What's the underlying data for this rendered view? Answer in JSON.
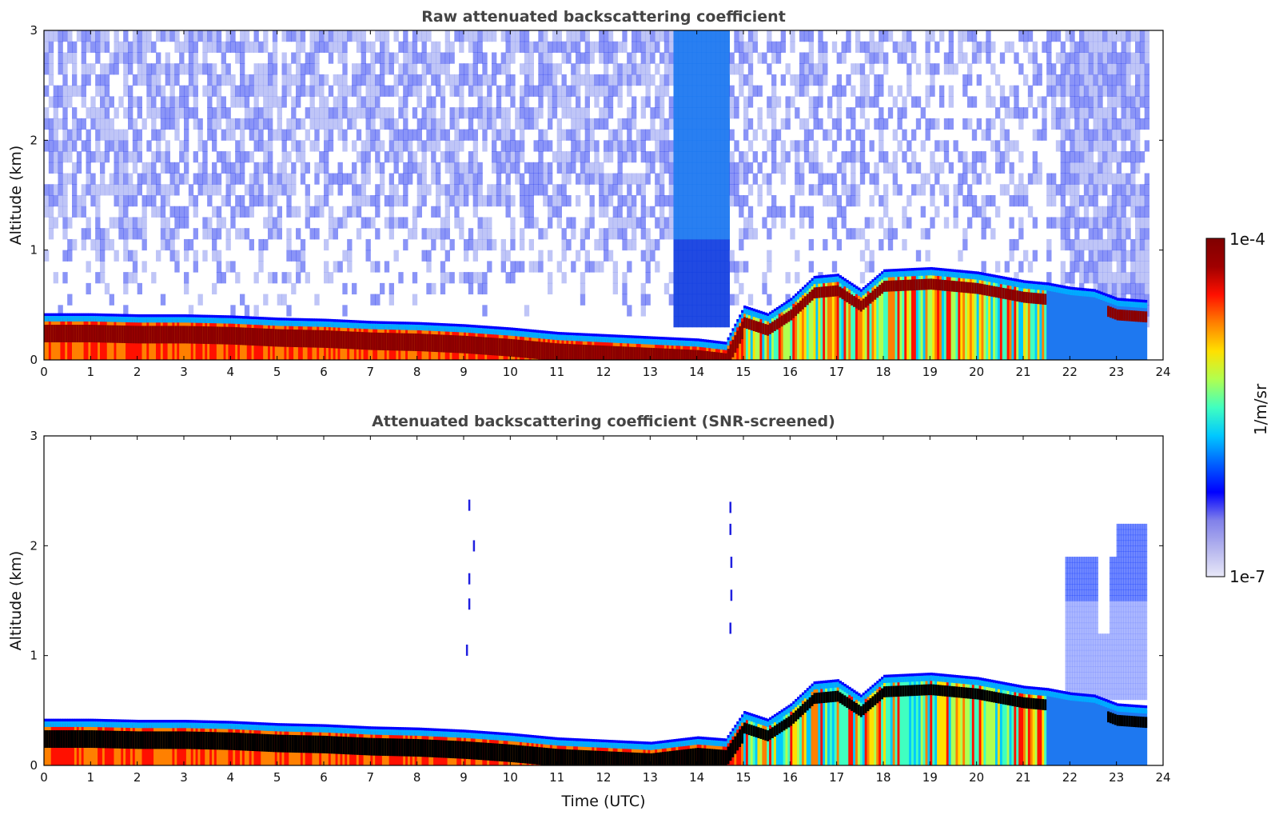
{
  "chart_data": [
    {
      "type": "heatmap",
      "title": "Raw attenuated backscattering coefficient",
      "xlabel": "",
      "ylabel": "Altitude (km)",
      "xlim": [
        0,
        24
      ],
      "ylim": [
        0,
        3
      ],
      "xticks": [
        "0",
        "1",
        "2",
        "3",
        "4",
        "5",
        "6",
        "7",
        "8",
        "9",
        "10",
        "11",
        "12",
        "13",
        "14",
        "15",
        "16",
        "17",
        "18",
        "19",
        "20",
        "21",
        "22",
        "23",
        "24"
      ],
      "yticks": [
        "0",
        "1",
        "2",
        "3"
      ],
      "grid": false,
      "data_end_hour": 23.65,
      "boundary_layer_top_km": [
        [
          0,
          0.38
        ],
        [
          1,
          0.38
        ],
        [
          2,
          0.37
        ],
        [
          3,
          0.37
        ],
        [
          4,
          0.36
        ],
        [
          5,
          0.34
        ],
        [
          6,
          0.33
        ],
        [
          7,
          0.31
        ],
        [
          8,
          0.3
        ],
        [
          9,
          0.28
        ],
        [
          10,
          0.25
        ],
        [
          11,
          0.21
        ],
        [
          12,
          0.19
        ],
        [
          13,
          0.17
        ],
        [
          14,
          0.15
        ],
        [
          14.6,
          0.12
        ],
        [
          15,
          0.45
        ],
        [
          15.5,
          0.38
        ],
        [
          16,
          0.52
        ],
        [
          16.5,
          0.72
        ],
        [
          17,
          0.74
        ],
        [
          17.5,
          0.6
        ],
        [
          18,
          0.78
        ],
        [
          19,
          0.8
        ],
        [
          20,
          0.76
        ],
        [
          21,
          0.68
        ],
        [
          21.5,
          0.66
        ],
        [
          22,
          0.62
        ],
        [
          22.5,
          0.6
        ],
        [
          23,
          0.52
        ],
        [
          23.65,
          0.5
        ]
      ],
      "notes_visible": "high-altitude background noise above 1 km; dense blue column near 13.5–14.6 h"
    },
    {
      "type": "heatmap",
      "title": "Attenuated backscattering coefficient (SNR-screened)",
      "xlabel": "Time (UTC)",
      "ylabel": "Altitude (km)",
      "xlim": [
        0,
        24
      ],
      "ylim": [
        0,
        3
      ],
      "xticks": [
        "0",
        "1",
        "2",
        "3",
        "4",
        "5",
        "6",
        "7",
        "8",
        "9",
        "10",
        "11",
        "12",
        "13",
        "14",
        "15",
        "16",
        "17",
        "18",
        "19",
        "20",
        "21",
        "22",
        "23",
        "24"
      ],
      "yticks": [
        "0",
        "1",
        "2",
        "3"
      ],
      "grid": false,
      "data_end_hour": 23.65,
      "boundary_layer_top_km": [
        [
          0,
          0.38
        ],
        [
          1,
          0.38
        ],
        [
          2,
          0.37
        ],
        [
          3,
          0.37
        ],
        [
          4,
          0.36
        ],
        [
          5,
          0.34
        ],
        [
          6,
          0.33
        ],
        [
          7,
          0.31
        ],
        [
          8,
          0.3
        ],
        [
          9,
          0.28
        ],
        [
          10,
          0.25
        ],
        [
          11,
          0.21
        ],
        [
          12,
          0.19
        ],
        [
          13,
          0.17
        ],
        [
          14,
          0.22
        ],
        [
          14.6,
          0.2
        ],
        [
          15,
          0.45
        ],
        [
          15.5,
          0.38
        ],
        [
          16,
          0.52
        ],
        [
          16.5,
          0.72
        ],
        [
          17,
          0.74
        ],
        [
          17.5,
          0.6
        ],
        [
          18,
          0.78
        ],
        [
          19,
          0.8
        ],
        [
          20,
          0.76
        ],
        [
          21,
          0.68
        ],
        [
          21.5,
          0.66
        ],
        [
          22,
          0.62
        ],
        [
          22.5,
          0.6
        ],
        [
          23,
          0.52
        ],
        [
          23.65,
          0.5
        ]
      ],
      "notes_visible": "signal below SNR threshold removed; sparse points near 9 h and 14.7 h; plumes above 22 h up to ~2.2 km"
    }
  ],
  "colorbar": {
    "label": "1/m/sr",
    "max_label": "1e-4",
    "min_label": "1e-7",
    "colors": [
      "#e8e8f8",
      "#b4b4ee",
      "#8080ea",
      "#0000ff",
      "#0060ff",
      "#00c8ff",
      "#40ffc0",
      "#b0ff50",
      "#ffe000",
      "#ff8000",
      "#ff1000",
      "#a00000",
      "#800000"
    ]
  }
}
